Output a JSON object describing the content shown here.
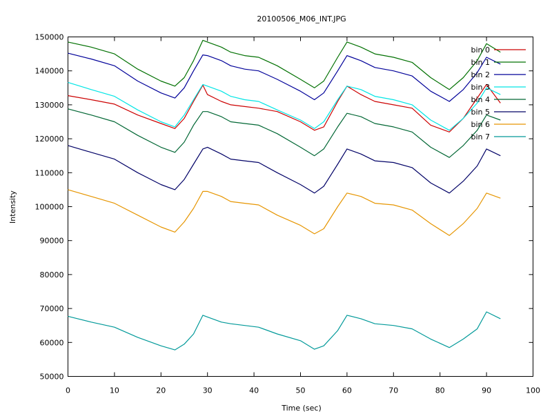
{
  "chart_data": {
    "type": "line",
    "title": "20100506_M06_INT.JPG",
    "xlabel": "Time (sec)",
    "ylabel": "Intensity",
    "xlim": [
      0,
      100
    ],
    "ylim": [
      50000,
      150000
    ],
    "xticks": [
      0,
      10,
      20,
      30,
      40,
      50,
      60,
      70,
      80,
      90,
      100
    ],
    "yticks": [
      50000,
      60000,
      70000,
      80000,
      90000,
      100000,
      110000,
      120000,
      130000,
      140000,
      150000
    ],
    "grid": false,
    "legend_position": "top-right",
    "x": [
      0,
      5,
      10,
      15,
      20,
      23,
      25,
      27,
      29,
      30,
      33,
      35,
      38,
      41,
      45,
      50,
      53,
      55,
      58,
      60,
      63,
      66,
      70,
      74,
      78,
      82,
      85,
      88,
      90,
      93
    ],
    "series": [
      {
        "name": "bin 0",
        "color": "#cc0000",
        "values": [
          132700,
          131500,
          130200,
          127000,
          124500,
          123000,
          126000,
          131000,
          135800,
          133000,
          131000,
          130000,
          129500,
          129000,
          128000,
          125000,
          122500,
          123500,
          131000,
          135500,
          133000,
          131000,
          130000,
          129000,
          124000,
          122000,
          126000,
          132000,
          136000,
          130500
        ]
      },
      {
        "name": "bin 1",
        "color": "#007000",
        "values": [
          148500,
          147000,
          145000,
          140500,
          137000,
          135500,
          138000,
          143000,
          149000,
          148500,
          147000,
          145500,
          144500,
          144000,
          141500,
          137500,
          135000,
          137000,
          144000,
          148500,
          147000,
          145000,
          144000,
          142500,
          138000,
          134500,
          138000,
          143000,
          148000,
          145500
        ]
      },
      {
        "name": "bin 2",
        "color": "#000099",
        "values": [
          145200,
          143500,
          141500,
          137000,
          133500,
          132000,
          135000,
          140000,
          144700,
          144500,
          143000,
          141500,
          140500,
          140000,
          137500,
          134000,
          131500,
          133500,
          140000,
          144500,
          143000,
          141000,
          140000,
          138500,
          134000,
          131000,
          134500,
          139500,
          144000,
          142000
        ]
      },
      {
        "name": "bin 3",
        "color": "#00e5e5",
        "values": [
          136600,
          134500,
          132500,
          128500,
          125000,
          123500,
          127000,
          131500,
          136000,
          135500,
          134000,
          132500,
          131500,
          131000,
          128500,
          125500,
          123000,
          125000,
          131500,
          135500,
          134500,
          132500,
          131500,
          130000,
          125500,
          122500,
          126000,
          130500,
          135000,
          133000
        ]
      },
      {
        "name": "bin 4",
        "color": "#006633",
        "values": [
          128800,
          127000,
          125000,
          121000,
          117500,
          116000,
          119000,
          124000,
          128000,
          128000,
          126500,
          125000,
          124500,
          124000,
          121500,
          117500,
          115000,
          117000,
          123500,
          127500,
          126500,
          124500,
          123500,
          122000,
          117500,
          114500,
          118000,
          122500,
          127000,
          125500
        ]
      },
      {
        "name": "bin 5",
        "color": "#000066",
        "values": [
          118000,
          116000,
          114000,
          110000,
          106500,
          105000,
          108000,
          112500,
          117000,
          117500,
          115500,
          114000,
          113500,
          113000,
          110000,
          106500,
          104000,
          106000,
          112500,
          117000,
          115500,
          113500,
          113000,
          111500,
          107000,
          104000,
          107500,
          112000,
          117000,
          115000
        ]
      },
      {
        "name": "bin 6",
        "color": "#e69500",
        "values": [
          105000,
          103000,
          101000,
          97500,
          94000,
          92500,
          95500,
          99500,
          104500,
          104500,
          103000,
          101500,
          101000,
          100500,
          97500,
          94500,
          92000,
          93500,
          100000,
          104000,
          103000,
          101000,
          100500,
          99000,
          95000,
          91500,
          95000,
          99500,
          104000,
          102500
        ]
      },
      {
        "name": "bin 7",
        "color": "#009999",
        "values": [
          67700,
          66000,
          64500,
          61500,
          59000,
          57800,
          59500,
          62500,
          68000,
          67500,
          66000,
          65500,
          65000,
          64500,
          62500,
          60500,
          58000,
          59000,
          63500,
          68000,
          67000,
          65500,
          65000,
          64000,
          61000,
          58500,
          61000,
          64000,
          69000,
          67000
        ]
      }
    ]
  }
}
